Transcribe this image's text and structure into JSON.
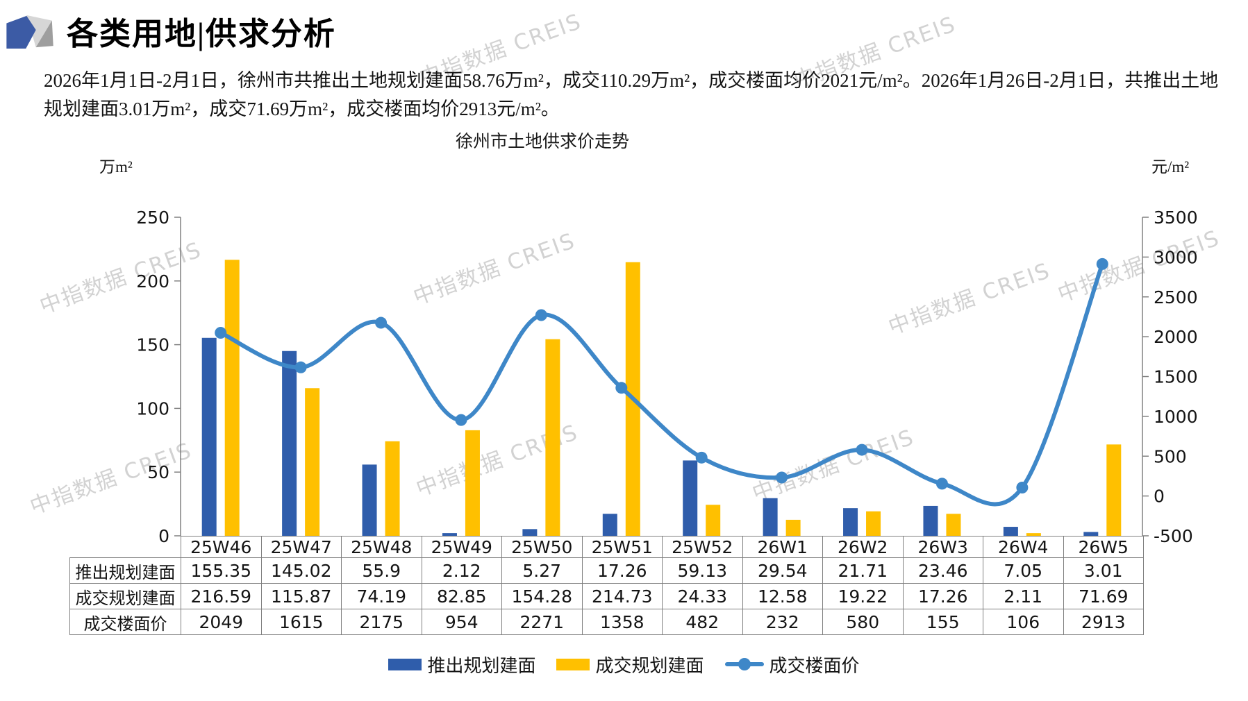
{
  "header": {
    "title": "各类用地|供求分析"
  },
  "summary": "2026年1月1日-2月1日，徐州市共推出土地规划建面58.76万m²，成交110.29万m²，成交楼面均价2021元/m²。2026年1月26日-2月1日，共推出土地规划建面3.01万m²，成交71.69万m²，成交楼面均价2913元/m²。",
  "watermark_text": "中指数据 CREIS",
  "chart_data": {
    "type": "bar",
    "title": "徐州市土地供求价走势",
    "categories": [
      "25W46",
      "25W47",
      "25W48",
      "25W49",
      "25W50",
      "25W51",
      "25W52",
      "26W1",
      "26W2",
      "26W3",
      "26W4",
      "26W5"
    ],
    "series": [
      {
        "name": "推出规划建面",
        "type": "bar",
        "axis": "left",
        "color": "#2F5DAB",
        "values": [
          155.35,
          145.02,
          55.9,
          2.12,
          5.27,
          17.26,
          59.13,
          29.54,
          21.71,
          23.46,
          7.05,
          3.01
        ]
      },
      {
        "name": "成交规划建面",
        "type": "bar",
        "axis": "left",
        "color": "#FFC000",
        "values": [
          216.59,
          115.87,
          74.19,
          82.85,
          154.28,
          214.73,
          24.33,
          12.58,
          19.22,
          17.26,
          2.11,
          71.69
        ]
      },
      {
        "name": "成交楼面价",
        "type": "line",
        "axis": "right",
        "color": "#3E87C8",
        "values": [
          2049,
          1615,
          2175,
          954,
          2271,
          1358,
          482,
          232,
          580,
          155,
          106,
          2913
        ]
      }
    ],
    "left_axis": {
      "unit": "万m²",
      "min": 0,
      "max": 250,
      "ticks": [
        250,
        200,
        150,
        100,
        50,
        0
      ]
    },
    "right_axis": {
      "unit": "元/m²",
      "min": -500,
      "max": 3500,
      "ticks": [
        3500,
        3000,
        2500,
        2000,
        1500,
        1000,
        500,
        0,
        -500
      ]
    },
    "legend_position": "bottom",
    "grid": false,
    "data_table": true
  }
}
